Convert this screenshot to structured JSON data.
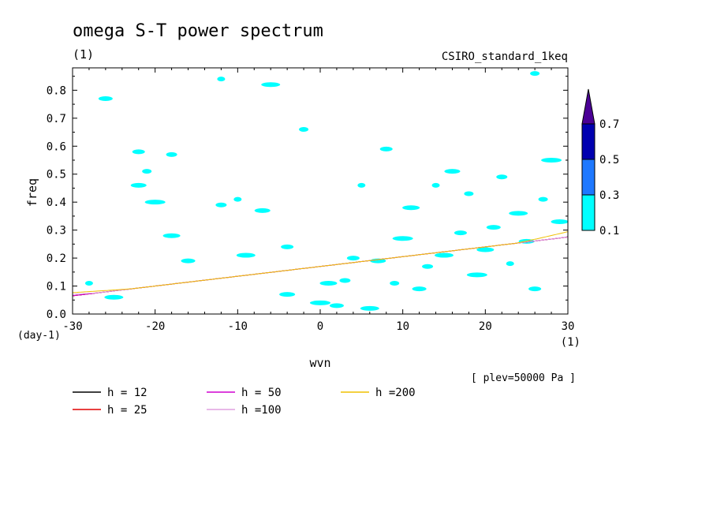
{
  "title": "omega S-T power spectrum",
  "subtitle_units": "(1)",
  "model_label": "CSIRO_standard_1keq",
  "level_note": "[ plev=50000 Pa ]",
  "chart_data": {
    "type": "contour",
    "xlabel": "wvn",
    "xunits": "(1)",
    "ylabel": "freq",
    "yunits": "(day-1)",
    "xlim": [
      -30,
      30
    ],
    "ylim": [
      0,
      0.88
    ],
    "xticks": [
      "-30",
      "-20",
      "-10",
      "0",
      "10",
      "20",
      "30"
    ],
    "yticks": [
      "0.0",
      "0.1",
      "0.2",
      "0.3",
      "0.4",
      "0.5",
      "0.6",
      "0.7",
      "0.8"
    ],
    "colorbar": {
      "levels": [
        "0.1",
        "0.3",
        "0.5",
        "0.7"
      ],
      "colors": [
        "#00ffff",
        "#1e78ff",
        "#0000b0",
        "#4b0096"
      ]
    },
    "dispersion_curves": [
      {
        "name": "h = 12",
        "h": 12,
        "color": "#000000"
      },
      {
        "name": "h = 25",
        "h": 25,
        "color": "#e00000"
      },
      {
        "name": "h = 50",
        "h": 50,
        "color": "#d000d0"
      },
      {
        "name": "h =100",
        "h": 100,
        "color": "#e0a0e0"
      },
      {
        "name": "h =200",
        "h": 200,
        "color": "#f0c000"
      }
    ],
    "contour_patches_0.1": [
      [
        -28,
        0.11
      ],
      [
        -25,
        0.06
      ],
      [
        -22,
        0.46
      ],
      [
        -22,
        0.58
      ],
      [
        -21,
        0.51
      ],
      [
        -20,
        0.4
      ],
      [
        -18,
        0.28
      ],
      [
        -16,
        0.19
      ],
      [
        -12,
        0.39
      ],
      [
        -10,
        0.41
      ],
      [
        -9,
        0.21
      ],
      [
        -7,
        0.37
      ],
      [
        -4,
        0.24
      ],
      [
        -2,
        0.66
      ],
      [
        0,
        0.04
      ],
      [
        1,
        0.11
      ],
      [
        2,
        0.03
      ],
      [
        3,
        0.12
      ],
      [
        5,
        0.46
      ],
      [
        6,
        0.02
      ],
      [
        7,
        0.19
      ],
      [
        8,
        0.59
      ],
      [
        9,
        0.11
      ],
      [
        10,
        0.27
      ],
      [
        11,
        0.38
      ],
      [
        12,
        0.09
      ],
      [
        13,
        0.17
      ],
      [
        14,
        0.46
      ],
      [
        15,
        0.21
      ],
      [
        16,
        0.51
      ],
      [
        17,
        0.29
      ],
      [
        18,
        0.43
      ],
      [
        19,
        0.14
      ],
      [
        20,
        0.23
      ],
      [
        21,
        0.31
      ],
      [
        22,
        0.49
      ],
      [
        23,
        0.18
      ],
      [
        24,
        0.36
      ],
      [
        25,
        0.26
      ],
      [
        26,
        0.09
      ],
      [
        27,
        0.41
      ],
      [
        28,
        0.55
      ],
      [
        29,
        0.33
      ],
      [
        -26,
        0.77
      ],
      [
        -18,
        0.57
      ],
      [
        -12,
        0.84
      ],
      [
        -6,
        0.82
      ],
      [
        -4,
        0.07
      ],
      [
        4,
        0.2
      ],
      [
        26,
        0.86
      ]
    ]
  },
  "legend_title": ""
}
